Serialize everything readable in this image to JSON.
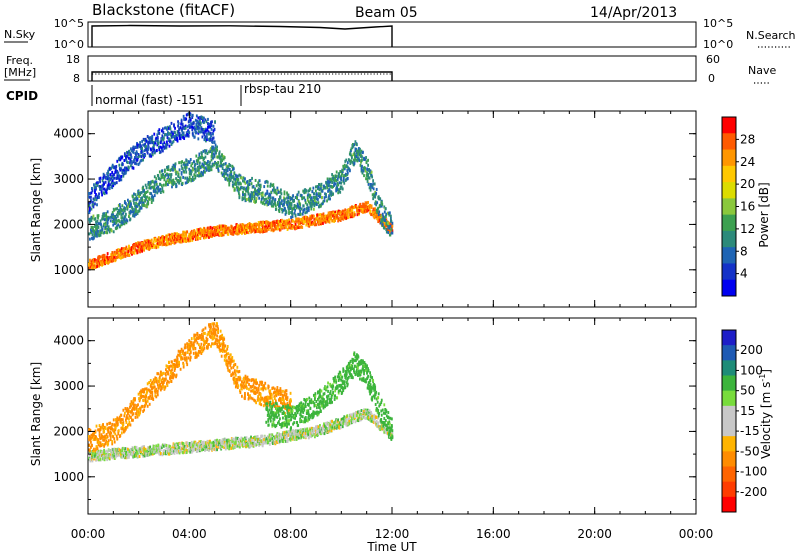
{
  "header": {
    "title": "Blackstone (fitACF)",
    "beam": "Beam 05",
    "date": "14/Apr/2013"
  },
  "panels": {
    "nsky": {
      "label": "N.Sky",
      "left_ticks": [
        "10^5",
        "10^0"
      ],
      "right_ticks": [
        "10^5",
        "10^0"
      ],
      "right_label": "N.Search"
    },
    "freq": {
      "label_top": "Freq.",
      "label_bottom": "[MHz]",
      "left_ticks": [
        "18",
        "8"
      ],
      "right_ticks": [
        "60",
        "0"
      ],
      "right_label": "Nave"
    },
    "cpid": {
      "label": "CPID",
      "modes": [
        {
          "label": "normal (fast) -151",
          "start_hour": 0.0
        },
        {
          "label": "rbsp-tau 210",
          "start_hour": 6.0
        }
      ]
    }
  },
  "colorbars": {
    "power": {
      "label": "Power [dB]",
      "ticks": [
        "28",
        "24",
        "20",
        "16",
        "12",
        "8",
        "4"
      ],
      "colors": [
        "#ff0000",
        "#ff5a00",
        "#ff9600",
        "#ffc800",
        "#dcdc00",
        "#8ac83c",
        "#3ca050",
        "#2c8a7a",
        "#1e64b4",
        "#1432c8",
        "#0000f0"
      ]
    },
    "velocity": {
      "label": "Velocity [m s",
      "label_sup": "-1",
      "label_close": "]",
      "ticks": [
        "200",
        "100",
        "50",
        "15",
        "-15",
        "-50",
        "-100",
        "-200"
      ],
      "colors": [
        "#1e1ec8",
        "#1e5ab4",
        "#1e8c78",
        "#3cb43c",
        "#78dc3c",
        "#c8c8c8",
        "#c8c8c8",
        "#ffb400",
        "#ff8c00",
        "#ff6400",
        "#ff3c00",
        "#ff0000"
      ]
    }
  },
  "chart_data": [
    {
      "type": "scatter",
      "name": "power",
      "title": "",
      "xlabel": "Time UT",
      "ylabel": "Slant Range [km]",
      "xticks": [
        "00:00",
        "04:00",
        "08:00",
        "12:00",
        "16:00",
        "20:00",
        "00:00"
      ],
      "yticks": [
        "1000",
        "2000",
        "3000",
        "4000"
      ],
      "xlim_hours": [
        0,
        24
      ],
      "ylim_km": [
        180,
        4500
      ],
      "data_end_hour": 12.0,
      "features": [
        {
          "feature": "main band",
          "hour": [
            0,
            1,
            2,
            3,
            4,
            5,
            6,
            7,
            8,
            9,
            10,
            11,
            12
          ],
          "range_km": [
            1100,
            1300,
            1500,
            1650,
            1750,
            1850,
            1900,
            1950,
            2000,
            2100,
            2200,
            2400,
            1850
          ],
          "power_db": 26
        },
        {
          "feature": "upper band",
          "hour": [
            0,
            1,
            2,
            3,
            4,
            5,
            6,
            7,
            8,
            9,
            10,
            10.5,
            11,
            11.5,
            12
          ],
          "range_km": [
            1900,
            2100,
            2500,
            3000,
            3200,
            3500,
            2800,
            2700,
            2400,
            2600,
            3000,
            3600,
            3200,
            2300,
            1900
          ],
          "power_db": 12
        },
        {
          "feature": "high-range echoes",
          "hour": [
            0,
            1,
            2,
            3,
            4,
            5
          ],
          "range_km": [
            2500,
            3100,
            3600,
            3900,
            4200,
            4000
          ],
          "power_db": 8
        }
      ]
    },
    {
      "type": "scatter",
      "name": "velocity",
      "title": "",
      "xlabel": "Time UT",
      "ylabel": "Slant Range [km]",
      "xticks": [
        "00:00",
        "04:00",
        "08:00",
        "12:00",
        "16:00",
        "20:00",
        "00:00"
      ],
      "yticks": [
        "1000",
        "2000",
        "3000",
        "4000"
      ],
      "xlim_hours": [
        0,
        24
      ],
      "ylim_km": [
        180,
        4500
      ],
      "data_end_hour": 12.0,
      "features": [
        {
          "feature": "ground scatter band",
          "hour": [
            0,
            1,
            2,
            3,
            4,
            5,
            6,
            7,
            8,
            9,
            10,
            11,
            12
          ],
          "range_km": [
            1450,
            1500,
            1550,
            1600,
            1650,
            1700,
            1750,
            1800,
            1900,
            2000,
            2200,
            2400,
            1900
          ],
          "velocity_ms": 0
        },
        {
          "feature": "negative velocity band",
          "hour": [
            0,
            1,
            2,
            3,
            4,
            5,
            6,
            7,
            8
          ],
          "range_km": [
            1800,
            2000,
            2600,
            3200,
            3800,
            4200,
            3000,
            2800,
            2600
          ],
          "velocity_ms": -60
        },
        {
          "feature": "positive velocity band",
          "hour": [
            7,
            8,
            9,
            10,
            10.5,
            11,
            11.5,
            12
          ],
          "range_km": [
            2400,
            2300,
            2600,
            3100,
            3500,
            3200,
            2500,
            2000
          ],
          "velocity_ms": 30
        }
      ]
    }
  ]
}
